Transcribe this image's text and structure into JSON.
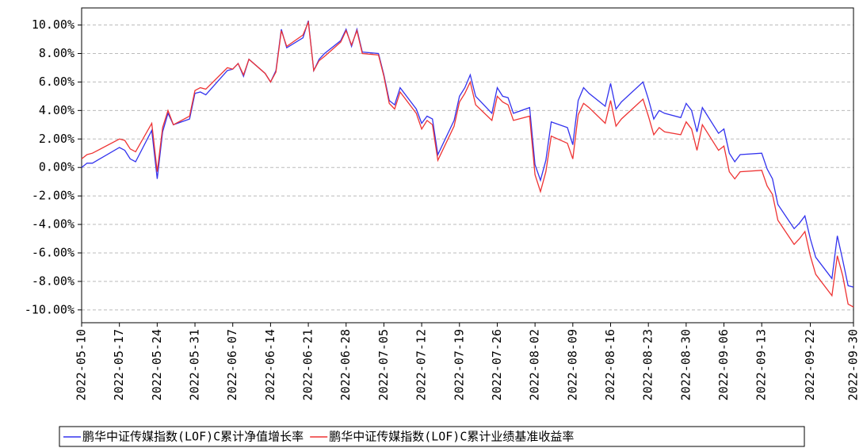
{
  "chart_data": {
    "type": "line",
    "x": [
      "2022-05-10",
      "2022-05-11",
      "2022-05-12",
      "2022-05-17",
      "2022-05-18",
      "2022-05-19",
      "2022-05-20",
      "2022-05-23",
      "2022-05-24",
      "2022-05-25",
      "2022-05-26",
      "2022-05-27",
      "2022-05-30",
      "2022-05-31",
      "2022-06-01",
      "2022-06-02",
      "2022-06-06",
      "2022-06-07",
      "2022-06-08",
      "2022-06-09",
      "2022-06-10",
      "2022-06-13",
      "2022-06-14",
      "2022-06-15",
      "2022-06-16",
      "2022-06-17",
      "2022-06-20",
      "2022-06-21",
      "2022-06-22",
      "2022-06-23",
      "2022-06-24",
      "2022-06-27",
      "2022-06-28",
      "2022-06-29",
      "2022-06-30",
      "2022-07-01",
      "2022-07-04",
      "2022-07-05",
      "2022-07-06",
      "2022-07-07",
      "2022-07-08",
      "2022-07-11",
      "2022-07-12",
      "2022-07-13",
      "2022-07-14",
      "2022-07-15",
      "2022-07-18",
      "2022-07-19",
      "2022-07-20",
      "2022-07-21",
      "2022-07-22",
      "2022-07-25",
      "2022-07-26",
      "2022-07-27",
      "2022-07-28",
      "2022-07-29",
      "2022-08-01",
      "2022-08-02",
      "2022-08-03",
      "2022-08-04",
      "2022-08-05",
      "2022-08-08",
      "2022-08-09",
      "2022-08-10",
      "2022-08-11",
      "2022-08-12",
      "2022-08-15",
      "2022-08-16",
      "2022-08-17",
      "2022-08-18",
      "2022-08-22",
      "2022-08-23",
      "2022-08-24",
      "2022-08-25",
      "2022-08-26",
      "2022-08-29",
      "2022-08-30",
      "2022-08-31",
      "2022-09-01",
      "2022-09-02",
      "2022-09-05",
      "2022-09-06",
      "2022-09-07",
      "2022-09-08",
      "2022-09-09",
      "2022-09-13",
      "2022-09-14",
      "2022-09-15",
      "2022-09-16",
      "2022-09-19",
      "2022-09-20",
      "2022-09-21",
      "2022-09-22",
      "2022-09-23",
      "2022-09-26",
      "2022-09-27",
      "2022-09-28",
      "2022-09-29",
      "2022-09-30"
    ],
    "series": [
      {
        "name": "鹏华中证传媒指数(LOF)C累计净值增长率",
        "color": "#3333ee",
        "values": [
          0.0,
          0.3,
          0.3,
          1.4,
          1.2,
          0.6,
          0.4,
          2.6,
          -0.8,
          2.5,
          3.8,
          3.0,
          3.4,
          5.2,
          5.3,
          5.1,
          6.8,
          6.9,
          7.3,
          6.4,
          7.6,
          6.6,
          6.0,
          6.8,
          9.7,
          8.4,
          9.1,
          10.3,
          6.8,
          7.6,
          8.0,
          8.9,
          9.7,
          8.5,
          9.7,
          8.1,
          8.0,
          6.5,
          4.7,
          4.4,
          5.6,
          4.1,
          3.1,
          3.6,
          3.4,
          0.9,
          3.3,
          5.0,
          5.6,
          6.5,
          5.0,
          3.8,
          5.6,
          5.0,
          4.9,
          3.8,
          4.2,
          0.2,
          -0.9,
          0.5,
          3.2,
          2.8,
          1.6,
          4.7,
          5.6,
          5.2,
          4.3,
          5.9,
          4.1,
          4.6,
          6.0,
          4.8,
          3.4,
          4.0,
          3.8,
          3.5,
          4.5,
          4.0,
          2.5,
          4.2,
          2.4,
          2.7,
          1.0,
          0.4,
          0.9,
          1.0,
          -0.1,
          -0.8,
          -2.6,
          -4.3,
          -3.9,
          -3.4,
          -5.0,
          -6.3,
          -7.8,
          -4.8,
          -6.5,
          -8.3,
          -8.4
        ]
      },
      {
        "name": "鹏华中证传媒指数(LOF)C累计业绩基准收益率",
        "color": "#ee3333",
        "values": [
          0.6,
          0.9,
          1.0,
          2.0,
          1.9,
          1.3,
          1.1,
          3.1,
          -0.3,
          2.8,
          4.0,
          3.0,
          3.6,
          5.4,
          5.6,
          5.5,
          7.0,
          6.9,
          7.3,
          6.5,
          7.6,
          6.6,
          6.0,
          6.7,
          9.6,
          8.5,
          9.3,
          10.2,
          6.8,
          7.5,
          7.8,
          8.8,
          9.6,
          8.6,
          9.6,
          8.0,
          7.9,
          6.4,
          4.5,
          4.1,
          5.3,
          3.8,
          2.7,
          3.3,
          3.0,
          0.5,
          2.9,
          4.6,
          5.2,
          6.0,
          4.4,
          3.3,
          5.0,
          4.6,
          4.4,
          3.3,
          3.6,
          -0.5,
          -1.7,
          -0.3,
          2.2,
          1.7,
          0.6,
          3.7,
          4.5,
          4.2,
          3.1,
          4.7,
          2.9,
          3.4,
          4.8,
          3.6,
          2.3,
          2.8,
          2.5,
          2.3,
          3.2,
          2.7,
          1.2,
          3.0,
          1.2,
          1.5,
          -0.3,
          -0.8,
          -0.3,
          -0.2,
          -1.3,
          -1.9,
          -3.7,
          -5.4,
          -5.0,
          -4.5,
          -6.2,
          -7.5,
          -9.0,
          -6.2,
          -7.6,
          -9.6,
          -9.8
        ]
      }
    ],
    "xlim": [
      "2022-05-10",
      "2022-09-30"
    ],
    "xticks": [
      "2022-05-10",
      "2022-05-17",
      "2022-05-24",
      "2022-05-31",
      "2022-06-07",
      "2022-06-14",
      "2022-06-21",
      "2022-06-28",
      "2022-07-05",
      "2022-07-12",
      "2022-07-19",
      "2022-07-26",
      "2022-08-02",
      "2022-08-09",
      "2022-08-16",
      "2022-08-23",
      "2022-08-30",
      "2022-09-06",
      "2022-09-13",
      "2022-09-22",
      "2022-09-30"
    ],
    "ylim": [
      -10.9,
      11.2
    ],
    "yticks": [
      {
        "value": -10,
        "label": "-10.00%"
      },
      {
        "value": -8,
        "label": "-8.00%"
      },
      {
        "value": -6,
        "label": "-6.00%"
      },
      {
        "value": -4,
        "label": "-4.00%"
      },
      {
        "value": -2,
        "label": "-2.00%"
      },
      {
        "value": 0,
        "label": "0.00%"
      },
      {
        "value": 2,
        "label": "2.00%"
      },
      {
        "value": 4,
        "label": "4.00%"
      },
      {
        "value": 6,
        "label": "6.00%"
      },
      {
        "value": 8,
        "label": "8.00%"
      },
      {
        "value": 10,
        "label": "10.00%"
      }
    ],
    "grid": true
  }
}
